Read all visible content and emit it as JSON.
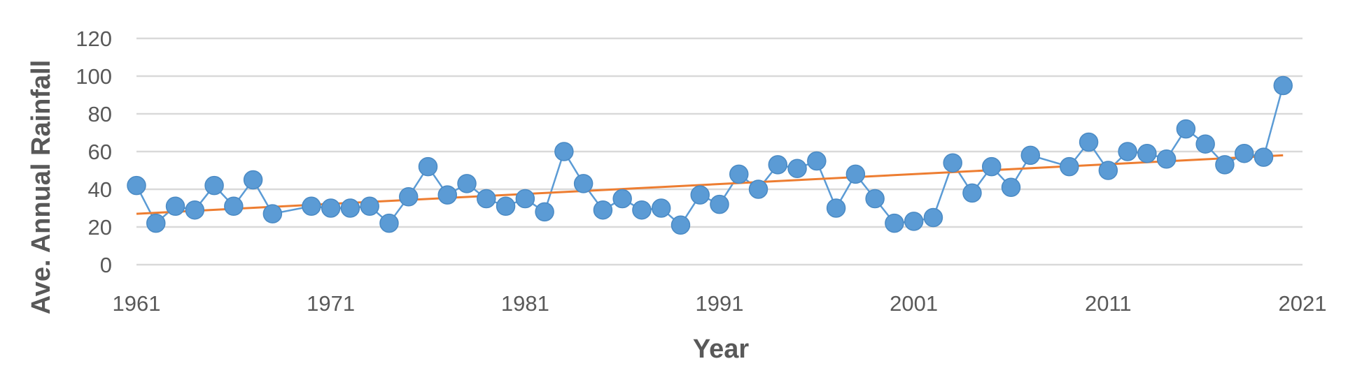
{
  "chart_data": {
    "type": "scatter",
    "xlabel": "Year",
    "ylabel": "Ave. Annual Rainfall",
    "xlim": [
      1961,
      2021
    ],
    "ylim": [
      0,
      120
    ],
    "x_ticks": [
      "1961",
      "1971",
      "1981",
      "1991",
      "2001",
      "2011",
      "2021"
    ],
    "y_ticks": [
      "0",
      "20",
      "40",
      "60",
      "80",
      "100",
      "120"
    ],
    "grid": "horizontal",
    "series": [
      {
        "x": [
          1961,
          1962,
          1963,
          1964,
          1965,
          1966,
          1967,
          1968,
          1970,
          1971,
          1972,
          1973,
          1974,
          1975,
          1976,
          1977,
          1978,
          1979,
          1980,
          1981,
          1982,
          1983,
          1984,
          1985,
          1986,
          1987,
          1988,
          1989,
          1990,
          1991,
          1992,
          1993,
          1994,
          1995,
          1996,
          1997,
          1998,
          1999,
          2000,
          2001,
          2002,
          2003,
          2004,
          2005,
          2006,
          2007,
          2009,
          2010,
          2011,
          2012,
          2013,
          2014,
          2015,
          2016,
          2017,
          2018,
          2019,
          2020
        ],
        "values": [
          42,
          22,
          31,
          29,
          42,
          31,
          45,
          27,
          31,
          30,
          30,
          31,
          22,
          36,
          52,
          37,
          43,
          35,
          31,
          35,
          28,
          60,
          43,
          29,
          35,
          29,
          30,
          21,
          37,
          32,
          48,
          40,
          53,
          51,
          55,
          30,
          48,
          35,
          22,
          23,
          25,
          54,
          38,
          52,
          41,
          58,
          52,
          65,
          50,
          60,
          59,
          56,
          72,
          64,
          53,
          59,
          57,
          95
        ]
      }
    ],
    "trendline": {
      "type": "linear",
      "x": [
        1961,
        2020
      ],
      "y": [
        27,
        58
      ]
    },
    "colors": {
      "series": "#5b9bd5",
      "trendline": "#ed7d31",
      "grid": "#d9d9d9",
      "text": "#595959"
    }
  }
}
